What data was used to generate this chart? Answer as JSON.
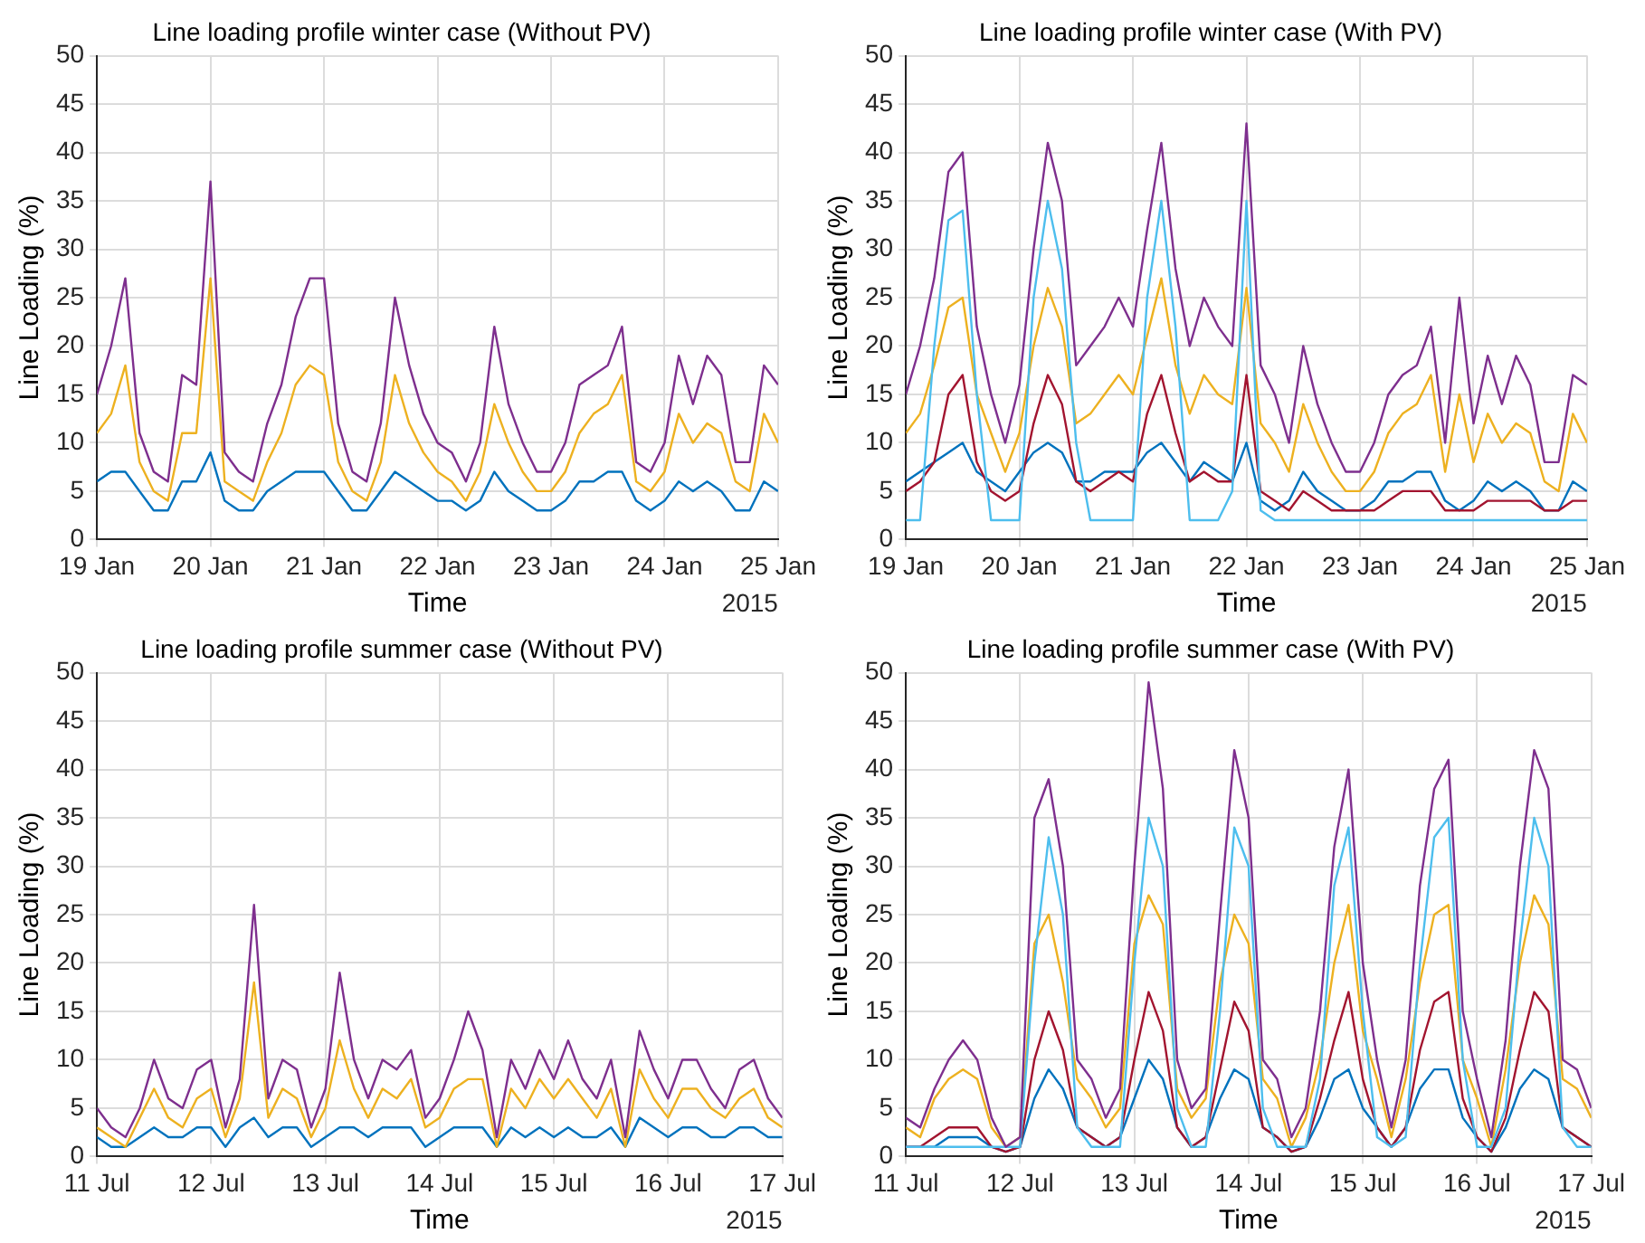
{
  "chart_data": [
    {
      "type": "line",
      "title": "Line loading profile winter case (Without PV)",
      "xlabel": "Time",
      "ylabel": "Line Loading (%)",
      "annotations": [
        "2015"
      ],
      "x": [
        "2015-01-19T00:00",
        "2015-01-19T03:00",
        "2015-01-19T06:00",
        "2015-01-19T09:00",
        "2015-01-19T12:00",
        "2015-01-19T15:00",
        "2015-01-19T18:00",
        "2015-01-19T21:00",
        "2015-01-20T00:00",
        "2015-01-20T03:00",
        "2015-01-20T06:00",
        "2015-01-20T09:00",
        "2015-01-20T12:00",
        "2015-01-20T15:00",
        "2015-01-20T18:00",
        "2015-01-20T21:00",
        "2015-01-21T00:00",
        "2015-01-21T03:00",
        "2015-01-21T06:00",
        "2015-01-21T09:00",
        "2015-01-21T12:00",
        "2015-01-21T15:00",
        "2015-01-21T18:00",
        "2015-01-21T21:00",
        "2015-01-22T00:00",
        "2015-01-22T03:00",
        "2015-01-22T06:00",
        "2015-01-22T09:00",
        "2015-01-22T12:00",
        "2015-01-22T15:00",
        "2015-01-22T18:00",
        "2015-01-22T21:00",
        "2015-01-23T00:00",
        "2015-01-23T03:00",
        "2015-01-23T06:00",
        "2015-01-23T09:00",
        "2015-01-23T12:00",
        "2015-01-23T15:00",
        "2015-01-23T18:00",
        "2015-01-23T21:00",
        "2015-01-24T00:00",
        "2015-01-24T03:00",
        "2015-01-24T06:00",
        "2015-01-24T09:00",
        "2015-01-24T12:00",
        "2015-01-24T15:00",
        "2015-01-24T18:00",
        "2015-01-24T21:00",
        "2015-01-25T00:00"
      ],
      "series": [
        {
          "color": "#7e2f8e",
          "values": [
            15,
            20,
            27,
            11,
            7,
            6,
            17,
            16,
            37,
            9,
            7,
            6,
            12,
            16,
            23,
            27,
            27,
            12,
            7,
            6,
            12,
            25,
            18,
            13,
            10,
            9,
            6,
            10,
            22,
            14,
            10,
            7,
            7,
            10,
            16,
            17,
            18,
            22,
            8,
            7,
            10,
            19,
            14,
            19,
            17,
            8,
            8,
            18,
            16
          ]
        },
        {
          "color": "#edb120",
          "values": [
            11,
            13,
            18,
            8,
            5,
            4,
            11,
            11,
            27,
            6,
            5,
            4,
            8,
            11,
            16,
            18,
            17,
            8,
            5,
            4,
            8,
            17,
            12,
            9,
            7,
            6,
            4,
            7,
            14,
            10,
            7,
            5,
            5,
            7,
            11,
            13,
            14,
            17,
            6,
            5,
            7,
            13,
            10,
            12,
            11,
            6,
            5,
            13,
            10
          ]
        },
        {
          "color": "#0072bd",
          "values": [
            6,
            7,
            7,
            5,
            3,
            3,
            6,
            6,
            9,
            4,
            3,
            3,
            5,
            6,
            7,
            7,
            7,
            5,
            3,
            3,
            5,
            7,
            6,
            5,
            4,
            4,
            3,
            4,
            7,
            5,
            4,
            3,
            3,
            4,
            6,
            6,
            7,
            7,
            4,
            3,
            4,
            6,
            5,
            6,
            5,
            3,
            3,
            6,
            5
          ]
        }
      ],
      "xlim": [
        "2015-01-19T00:00",
        "2015-01-25T00:00"
      ],
      "xticks": [
        {
          "value": "2015-01-19T00:00",
          "label": "19 Jan"
        },
        {
          "value": "2015-01-20T00:00",
          "label": "20 Jan"
        },
        {
          "value": "2015-01-21T00:00",
          "label": "21 Jan"
        },
        {
          "value": "2015-01-22T00:00",
          "label": "22 Jan"
        },
        {
          "value": "2015-01-23T00:00",
          "label": "23 Jan"
        },
        {
          "value": "2015-01-24T00:00",
          "label": "24 Jan"
        },
        {
          "value": "2015-01-25T00:00",
          "label": "25 Jan"
        }
      ],
      "ylim": [
        0,
        50
      ],
      "yticks": [
        0,
        5,
        10,
        15,
        20,
        25,
        30,
        35,
        40,
        45,
        50
      ],
      "grid": true,
      "legend": false,
      "marker": "none",
      "line_style": "solid"
    },
    {
      "type": "line",
      "title": "Line loading profile winter case (With PV)",
      "xlabel": "Time",
      "ylabel": "Line Loading (%)",
      "annotations": [
        "2015"
      ],
      "x": [
        "2015-01-19T00:00",
        "2015-01-19T03:00",
        "2015-01-19T06:00",
        "2015-01-19T09:00",
        "2015-01-19T12:00",
        "2015-01-19T15:00",
        "2015-01-19T18:00",
        "2015-01-19T21:00",
        "2015-01-20T00:00",
        "2015-01-20T03:00",
        "2015-01-20T06:00",
        "2015-01-20T09:00",
        "2015-01-20T12:00",
        "2015-01-20T15:00",
        "2015-01-20T18:00",
        "2015-01-20T21:00",
        "2015-01-21T00:00",
        "2015-01-21T03:00",
        "2015-01-21T06:00",
        "2015-01-21T09:00",
        "2015-01-21T12:00",
        "2015-01-21T15:00",
        "2015-01-21T18:00",
        "2015-01-21T21:00",
        "2015-01-22T00:00",
        "2015-01-22T03:00",
        "2015-01-22T06:00",
        "2015-01-22T09:00",
        "2015-01-22T12:00",
        "2015-01-22T15:00",
        "2015-01-22T18:00",
        "2015-01-22T21:00",
        "2015-01-23T00:00",
        "2015-01-23T03:00",
        "2015-01-23T06:00",
        "2015-01-23T09:00",
        "2015-01-23T12:00",
        "2015-01-23T15:00",
        "2015-01-23T18:00",
        "2015-01-23T21:00",
        "2015-01-24T00:00",
        "2015-01-24T03:00",
        "2015-01-24T06:00",
        "2015-01-24T09:00",
        "2015-01-24T12:00",
        "2015-01-24T15:00",
        "2015-01-24T18:00",
        "2015-01-24T21:00",
        "2015-01-25T00:00"
      ],
      "series": [
        {
          "color": "#7e2f8e",
          "values": [
            15,
            20,
            27,
            38,
            40,
            22,
            15,
            10,
            16,
            30,
            41,
            35,
            18,
            20,
            22,
            25,
            22,
            32,
            41,
            28,
            20,
            25,
            22,
            20,
            43,
            18,
            15,
            10,
            20,
            14,
            10,
            7,
            7,
            10,
            15,
            17,
            18,
            22,
            10,
            25,
            12,
            19,
            14,
            19,
            16,
            8,
            8,
            17,
            16
          ]
        },
        {
          "color": "#4dbeee",
          "values": [
            2,
            2,
            20,
            33,
            34,
            15,
            2,
            2,
            2,
            25,
            35,
            28,
            10,
            2,
            2,
            2,
            2,
            25,
            35,
            22,
            2,
            2,
            2,
            5,
            35,
            3,
            2,
            2,
            2,
            2,
            2,
            2,
            2,
            2,
            2,
            2,
            2,
            2,
            2,
            2,
            2,
            2,
            2,
            2,
            2,
            2,
            2,
            2,
            2
          ]
        },
        {
          "color": "#edb120",
          "values": [
            11,
            13,
            18,
            24,
            25,
            15,
            11,
            7,
            11,
            20,
            26,
            22,
            12,
            13,
            15,
            17,
            15,
            21,
            27,
            18,
            13,
            17,
            15,
            14,
            26,
            12,
            10,
            7,
            14,
            10,
            7,
            5,
            5,
            7,
            11,
            13,
            14,
            17,
            7,
            15,
            8,
            13,
            10,
            12,
            11,
            6,
            5,
            13,
            10
          ]
        },
        {
          "color": "#a2142f",
          "values": [
            5,
            6,
            8,
            15,
            17,
            8,
            5,
            4,
            5,
            12,
            17,
            14,
            6,
            5,
            6,
            7,
            6,
            13,
            17,
            11,
            6,
            7,
            6,
            6,
            17,
            5,
            4,
            3,
            5,
            4,
            3,
            3,
            3,
            3,
            4,
            5,
            5,
            5,
            3,
            3,
            3,
            4,
            4,
            4,
            4,
            3,
            3,
            4,
            4
          ]
        },
        {
          "color": "#0072bd",
          "values": [
            6,
            7,
            8,
            9,
            10,
            7,
            6,
            5,
            7,
            9,
            10,
            9,
            6,
            6,
            7,
            7,
            7,
            9,
            10,
            8,
            6,
            8,
            7,
            6,
            10,
            4,
            3,
            4,
            7,
            5,
            4,
            3,
            3,
            4,
            6,
            6,
            7,
            7,
            4,
            3,
            4,
            6,
            5,
            6,
            5,
            3,
            3,
            6,
            5
          ]
        }
      ],
      "xlim": [
        "2015-01-19T00:00",
        "2015-01-25T00:00"
      ],
      "xticks": [
        {
          "value": "2015-01-19T00:00",
          "label": "19 Jan"
        },
        {
          "value": "2015-01-20T00:00",
          "label": "20 Jan"
        },
        {
          "value": "2015-01-21T00:00",
          "label": "21 Jan"
        },
        {
          "value": "2015-01-22T00:00",
          "label": "22 Jan"
        },
        {
          "value": "2015-01-23T00:00",
          "label": "23 Jan"
        },
        {
          "value": "2015-01-24T00:00",
          "label": "24 Jan"
        },
        {
          "value": "2015-01-25T00:00",
          "label": "25 Jan"
        }
      ],
      "ylim": [
        0,
        50
      ],
      "yticks": [
        0,
        5,
        10,
        15,
        20,
        25,
        30,
        35,
        40,
        45,
        50
      ],
      "grid": true,
      "legend": false,
      "marker": "none",
      "line_style": "solid"
    },
    {
      "type": "line",
      "title": "Line loading profile summer case (Without PV)",
      "xlabel": "Time",
      "ylabel": "Line Loading (%)",
      "annotations": [
        "2015"
      ],
      "x": [
        "2015-07-11T00:00",
        "2015-07-11T03:00",
        "2015-07-11T06:00",
        "2015-07-11T09:00",
        "2015-07-11T12:00",
        "2015-07-11T15:00",
        "2015-07-11T18:00",
        "2015-07-11T21:00",
        "2015-07-12T00:00",
        "2015-07-12T03:00",
        "2015-07-12T06:00",
        "2015-07-12T09:00",
        "2015-07-12T12:00",
        "2015-07-12T15:00",
        "2015-07-12T18:00",
        "2015-07-12T21:00",
        "2015-07-13T00:00",
        "2015-07-13T03:00",
        "2015-07-13T06:00",
        "2015-07-13T09:00",
        "2015-07-13T12:00",
        "2015-07-13T15:00",
        "2015-07-13T18:00",
        "2015-07-13T21:00",
        "2015-07-14T00:00",
        "2015-07-14T03:00",
        "2015-07-14T06:00",
        "2015-07-14T09:00",
        "2015-07-14T12:00",
        "2015-07-14T15:00",
        "2015-07-14T18:00",
        "2015-07-14T21:00",
        "2015-07-15T00:00",
        "2015-07-15T03:00",
        "2015-07-15T06:00",
        "2015-07-15T09:00",
        "2015-07-15T12:00",
        "2015-07-15T15:00",
        "2015-07-15T18:00",
        "2015-07-15T21:00",
        "2015-07-16T00:00",
        "2015-07-16T03:00",
        "2015-07-16T06:00",
        "2015-07-16T09:00",
        "2015-07-16T12:00",
        "2015-07-16T15:00",
        "2015-07-16T18:00",
        "2015-07-16T21:00",
        "2015-07-17T00:00"
      ],
      "series": [
        {
          "color": "#7e2f8e",
          "values": [
            5,
            3,
            2,
            5,
            10,
            6,
            5,
            9,
            10,
            3,
            8,
            26,
            6,
            10,
            9,
            3,
            7,
            19,
            10,
            6,
            10,
            9,
            11,
            4,
            6,
            10,
            15,
            11,
            2,
            10,
            7,
            11,
            8,
            12,
            8,
            6,
            10,
            2,
            13,
            9,
            6,
            10,
            10,
            7,
            5,
            9,
            10,
            6,
            4
          ]
        },
        {
          "color": "#edb120",
          "values": [
            3,
            2,
            1,
            4,
            7,
            4,
            3,
            6,
            7,
            2,
            6,
            18,
            4,
            7,
            6,
            2,
            5,
            12,
            7,
            4,
            7,
            6,
            8,
            3,
            4,
            7,
            8,
            8,
            1,
            7,
            5,
            8,
            6,
            8,
            6,
            4,
            7,
            1,
            9,
            6,
            4,
            7,
            7,
            5,
            4,
            6,
            7,
            4,
            3
          ]
        },
        {
          "color": "#0072bd",
          "values": [
            2,
            1,
            1,
            2,
            3,
            2,
            2,
            3,
            3,
            1,
            3,
            4,
            2,
            3,
            3,
            1,
            2,
            3,
            3,
            2,
            3,
            3,
            3,
            1,
            2,
            3,
            3,
            3,
            1,
            3,
            2,
            3,
            2,
            3,
            2,
            2,
            3,
            1,
            4,
            3,
            2,
            3,
            3,
            2,
            2,
            3,
            3,
            2,
            2
          ]
        }
      ],
      "xlim": [
        "2015-07-11T00:00",
        "2015-07-17T00:00"
      ],
      "xticks": [
        {
          "value": "2015-07-11T00:00",
          "label": "11 Jul"
        },
        {
          "value": "2015-07-12T00:00",
          "label": "12 Jul"
        },
        {
          "value": "2015-07-13T00:00",
          "label": "13 Jul"
        },
        {
          "value": "2015-07-14T00:00",
          "label": "14 Jul"
        },
        {
          "value": "2015-07-15T00:00",
          "label": "15 Jul"
        },
        {
          "value": "2015-07-16T00:00",
          "label": "16 Jul"
        },
        {
          "value": "2015-07-17T00:00",
          "label": "17 Jul"
        }
      ],
      "ylim": [
        0,
        50
      ],
      "yticks": [
        0,
        5,
        10,
        15,
        20,
        25,
        30,
        35,
        40,
        45,
        50
      ],
      "grid": true,
      "legend": false,
      "marker": "none",
      "line_style": "solid"
    },
    {
      "type": "line",
      "title": "Line loading profile summer case (With PV)",
      "xlabel": "Time",
      "ylabel": "Line Loading (%)",
      "annotations": [
        "2015"
      ],
      "x": [
        "2015-07-11T00:00",
        "2015-07-11T03:00",
        "2015-07-11T06:00",
        "2015-07-11T09:00",
        "2015-07-11T12:00",
        "2015-07-11T15:00",
        "2015-07-11T18:00",
        "2015-07-11T21:00",
        "2015-07-12T00:00",
        "2015-07-12T03:00",
        "2015-07-12T06:00",
        "2015-07-12T09:00",
        "2015-07-12T12:00",
        "2015-07-12T15:00",
        "2015-07-12T18:00",
        "2015-07-12T21:00",
        "2015-07-13T00:00",
        "2015-07-13T03:00",
        "2015-07-13T06:00",
        "2015-07-13T09:00",
        "2015-07-13T12:00",
        "2015-07-13T15:00",
        "2015-07-13T18:00",
        "2015-07-13T21:00",
        "2015-07-14T00:00",
        "2015-07-14T03:00",
        "2015-07-14T06:00",
        "2015-07-14T09:00",
        "2015-07-14T12:00",
        "2015-07-14T15:00",
        "2015-07-14T18:00",
        "2015-07-14T21:00",
        "2015-07-15T00:00",
        "2015-07-15T03:00",
        "2015-07-15T06:00",
        "2015-07-15T09:00",
        "2015-07-15T12:00",
        "2015-07-15T15:00",
        "2015-07-15T18:00",
        "2015-07-15T21:00",
        "2015-07-16T00:00",
        "2015-07-16T03:00",
        "2015-07-16T06:00",
        "2015-07-16T09:00",
        "2015-07-16T12:00",
        "2015-07-16T15:00",
        "2015-07-16T18:00",
        "2015-07-16T21:00",
        "2015-07-17T00:00"
      ],
      "series": [
        {
          "color": "#7e2f8e",
          "values": [
            4,
            3,
            7,
            10,
            12,
            10,
            4,
            1,
            2,
            35,
            39,
            30,
            10,
            8,
            4,
            7,
            30,
            49,
            38,
            10,
            5,
            7,
            25,
            42,
            35,
            10,
            8,
            2,
            5,
            15,
            32,
            40,
            20,
            10,
            3,
            10,
            28,
            38,
            41,
            15,
            8,
            2,
            12,
            30,
            42,
            38,
            10,
            9,
            5
          ]
        },
        {
          "color": "#4dbeee",
          "values": [
            1,
            1,
            1,
            1,
            1,
            1,
            1,
            1,
            1,
            20,
            33,
            25,
            3,
            1,
            1,
            1,
            20,
            35,
            30,
            5,
            1,
            1,
            15,
            34,
            30,
            5,
            1,
            1,
            1,
            8,
            28,
            34,
            15,
            2,
            1,
            2,
            20,
            33,
            35,
            10,
            1,
            1,
            5,
            22,
            35,
            30,
            3,
            1,
            1
          ]
        },
        {
          "color": "#edb120",
          "values": [
            3,
            2,
            6,
            8,
            9,
            8,
            3,
            1,
            2,
            22,
            25,
            18,
            8,
            6,
            3,
            5,
            22,
            27,
            24,
            7,
            4,
            6,
            18,
            25,
            22,
            8,
            6,
            1,
            4,
            10,
            20,
            26,
            13,
            8,
            2,
            8,
            18,
            25,
            26,
            10,
            6,
            1,
            9,
            20,
            27,
            24,
            8,
            7,
            4
          ]
        },
        {
          "color": "#a2142f",
          "values": [
            1,
            1,
            2,
            3,
            3,
            3,
            1,
            0.5,
            1,
            10,
            15,
            11,
            3,
            2,
            1,
            2,
            10,
            17,
            13,
            3,
            1,
            2,
            9,
            16,
            13,
            3,
            2,
            0.5,
            1,
            6,
            12,
            17,
            8,
            3,
            1,
            3,
            11,
            16,
            17,
            6,
            2,
            0.5,
            4,
            11,
            17,
            15,
            3,
            2,
            1
          ]
        },
        {
          "color": "#0072bd",
          "values": [
            1,
            1,
            1,
            2,
            2,
            2,
            1,
            0.5,
            1,
            6,
            9,
            7,
            3,
            2,
            1,
            2,
            6,
            10,
            8,
            3,
            1,
            2,
            6,
            9,
            8,
            3,
            2,
            0.5,
            1,
            4,
            8,
            9,
            5,
            3,
            1,
            3,
            7,
            9,
            9,
            4,
            2,
            0.5,
            3,
            7,
            9,
            8,
            3,
            2,
            1
          ]
        }
      ],
      "xlim": [
        "2015-07-11T00:00",
        "2015-07-17T00:00"
      ],
      "xticks": [
        {
          "value": "2015-07-11T00:00",
          "label": "11 Jul"
        },
        {
          "value": "2015-07-12T00:00",
          "label": "12 Jul"
        },
        {
          "value": "2015-07-13T00:00",
          "label": "13 Jul"
        },
        {
          "value": "2015-07-14T00:00",
          "label": "14 Jul"
        },
        {
          "value": "2015-07-15T00:00",
          "label": "15 Jul"
        },
        {
          "value": "2015-07-16T00:00",
          "label": "16 Jul"
        },
        {
          "value": "2015-07-17T00:00",
          "label": "17 Jul"
        }
      ],
      "ylim": [
        0,
        50
      ],
      "yticks": [
        0,
        5,
        10,
        15,
        20,
        25,
        30,
        35,
        40,
        45,
        50
      ],
      "grid": true,
      "legend": false,
      "marker": "none",
      "line_style": "solid"
    }
  ]
}
